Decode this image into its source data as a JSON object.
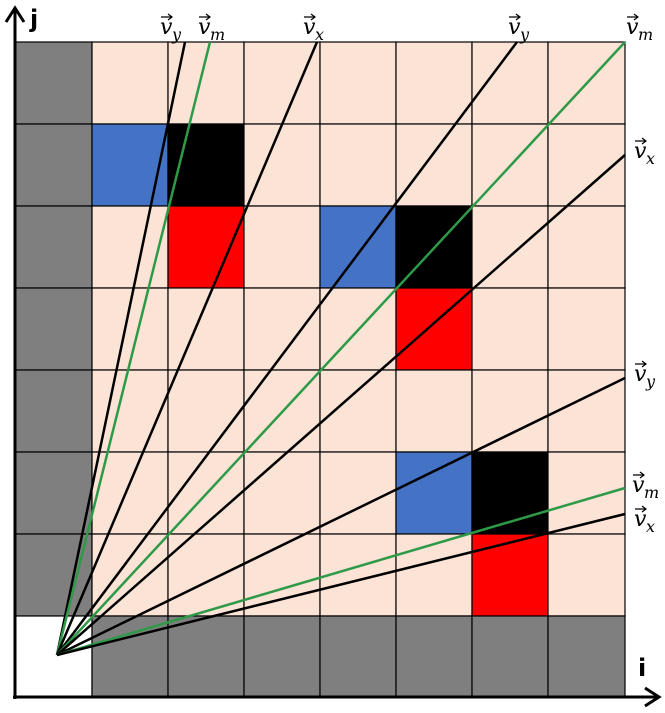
{
  "axes": {
    "vertical": "j",
    "horizontal": "i"
  },
  "vectors": [
    {
      "symbol": "v",
      "sub": "y"
    },
    {
      "symbol": "v",
      "sub": "m"
    },
    {
      "symbol": "v",
      "sub": "x"
    },
    {
      "symbol": "v",
      "sub": "y"
    },
    {
      "symbol": "v",
      "sub": "m"
    },
    {
      "symbol": "v",
      "sub": "x"
    },
    {
      "symbol": "v",
      "sub": "y"
    },
    {
      "symbol": "v",
      "sub": "m"
    },
    {
      "symbol": "v",
      "sub": "x"
    }
  ]
}
